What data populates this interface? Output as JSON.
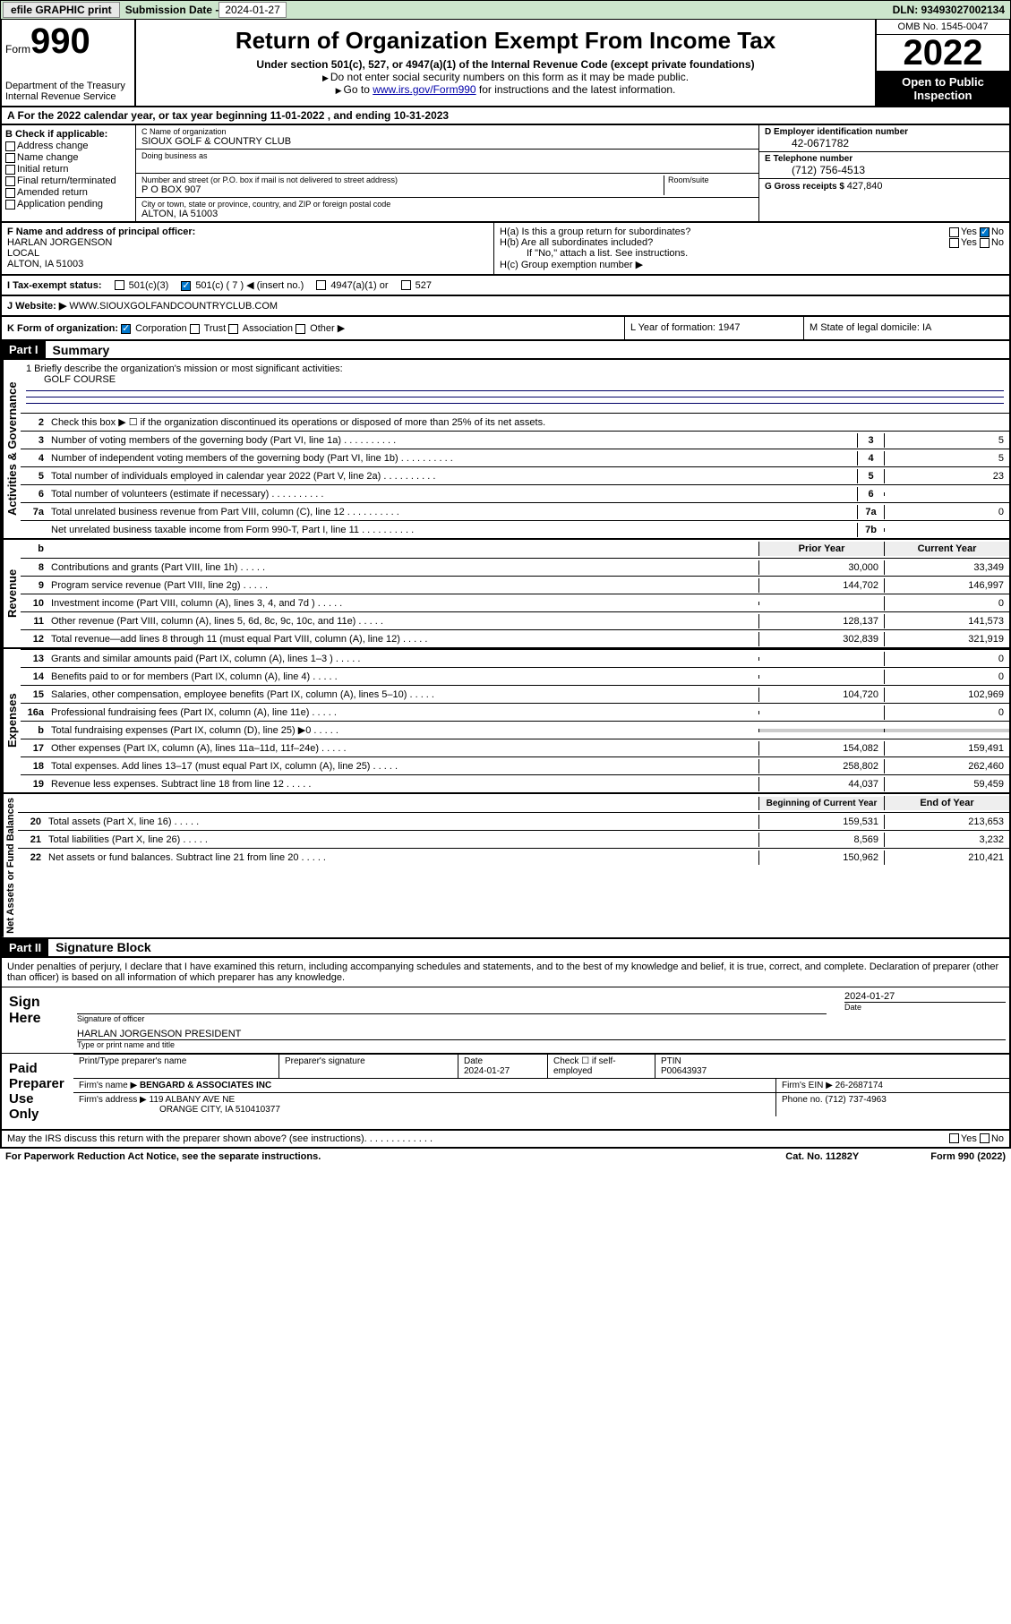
{
  "topbar": {
    "efile": "efile GRAPHIC print",
    "sub_label": "Submission Date - ",
    "sub_date": "2024-01-27",
    "dln": "DLN: 93493027002134"
  },
  "header": {
    "form_word": "Form",
    "form_num": "990",
    "dept1": "Department of the Treasury",
    "dept2": "Internal Revenue Service",
    "title": "Return of Organization Exempt From Income Tax",
    "subtitle": "Under section 501(c), 527, or 4947(a)(1) of the Internal Revenue Code (except private foundations)",
    "note1": "Do not enter social security numbers on this form as it may be made public.",
    "note2_pre": "Go to ",
    "note2_link": "www.irs.gov/Form990",
    "note2_post": " for instructions and the latest information.",
    "omb": "OMB No. 1545-0047",
    "year": "2022",
    "open": "Open to Public Inspection"
  },
  "row_a": "A For the 2022 calendar year, or tax year beginning 11-01-2022    , and ending 10-31-2023",
  "col_b": {
    "hdr": "B Check if applicable:",
    "items": [
      "Address change",
      "Name change",
      "Initial return",
      "Final return/terminated",
      "Amended return",
      "Application pending"
    ]
  },
  "col_c": {
    "name_label": "C Name of organization",
    "name": "SIOUX GOLF & COUNTRY CLUB",
    "dba_label": "Doing business as",
    "addr_label": "Number and street (or P.O. box if mail is not delivered to street address)",
    "room_label": "Room/suite",
    "addr": "P O BOX 907",
    "city_label": "City or town, state or province, country, and ZIP or foreign postal code",
    "city": "ALTON, IA  51003"
  },
  "col_d": {
    "ein_label": "D Employer identification number",
    "ein": "42-0671782",
    "tel_label": "E Telephone number",
    "tel": "(712) 756-4513",
    "gross_label": "G Gross receipts $ ",
    "gross": "427,840"
  },
  "fg": {
    "f_label": "F Name and address of principal officer:",
    "f_name": "HARLAN JORGENSON",
    "f_addr1": "LOCAL",
    "f_addr2": "ALTON, IA  51003",
    "ha": "H(a)  Is this a group return for subordinates?",
    "hb": "H(b)  Are all subordinates included?",
    "hb_note": "If \"No,\" attach a list. See instructions.",
    "hc": "H(c)  Group exemption number ▶",
    "yes": "Yes",
    "no": "No"
  },
  "row_i": {
    "label": "I    Tax-exempt status:",
    "o1": "501(c)(3)",
    "o2": "501(c) ( 7 ) ◀ (insert no.)",
    "o3": "4947(a)(1) or",
    "o4": "527"
  },
  "row_j": {
    "label": "J    Website: ▶",
    "val": " WWW.SIOUXGOLFANDCOUNTRYCLUB.COM"
  },
  "row_k": {
    "label": "K Form of organization:",
    "opts": [
      "Corporation",
      "Trust",
      "Association",
      "Other ▶"
    ],
    "l": "L Year of formation: 1947",
    "m": "M State of legal domicile: IA"
  },
  "part1": {
    "hdr": "Part I",
    "title": "Summary"
  },
  "mission": {
    "q": "1   Briefly describe the organization's mission or most significant activities:",
    "ans": "GOLF COURSE"
  },
  "gov_lines": [
    {
      "num": "2",
      "text": "Check this box ▶ ☐  if the organization discontinued its operations or disposed of more than 25% of its net assets."
    },
    {
      "num": "3",
      "text": "Number of voting members of the governing body (Part VI, line 1a)",
      "box": "3",
      "val": "5"
    },
    {
      "num": "4",
      "text": "Number of independent voting members of the governing body (Part VI, line 1b)",
      "box": "4",
      "val": "5"
    },
    {
      "num": "5",
      "text": "Total number of individuals employed in calendar year 2022 (Part V, line 2a)",
      "box": "5",
      "val": "23"
    },
    {
      "num": "6",
      "text": "Total number of volunteers (estimate if necessary)",
      "box": "6",
      "val": ""
    },
    {
      "num": "7a",
      "text": "Total unrelated business revenue from Part VIII, column (C), line 12",
      "box": "7a",
      "val": "0"
    },
    {
      "num": "",
      "text": "Net unrelated business taxable income from Form 990-T, Part I, line 11",
      "box": "7b",
      "val": ""
    }
  ],
  "vert_labels": {
    "gov": "Activities & Governance",
    "rev": "Revenue",
    "exp": "Expenses",
    "net": "Net Assets or Fund Balances"
  },
  "col_hdrs": {
    "b": "b",
    "prior": "Prior Year",
    "curr": "Current Year"
  },
  "rev_lines": [
    {
      "num": "8",
      "text": "Contributions and grants (Part VIII, line 1h)",
      "p": "30,000",
      "c": "33,349"
    },
    {
      "num": "9",
      "text": "Program service revenue (Part VIII, line 2g)",
      "p": "144,702",
      "c": "146,997"
    },
    {
      "num": "10",
      "text": "Investment income (Part VIII, column (A), lines 3, 4, and 7d )",
      "p": "",
      "c": "0"
    },
    {
      "num": "11",
      "text": "Other revenue (Part VIII, column (A), lines 5, 6d, 8c, 9c, 10c, and 11e)",
      "p": "128,137",
      "c": "141,573"
    },
    {
      "num": "12",
      "text": "Total revenue—add lines 8 through 11 (must equal Part VIII, column (A), line 12)",
      "p": "302,839",
      "c": "321,919"
    }
  ],
  "exp_lines": [
    {
      "num": "13",
      "text": "Grants and similar amounts paid (Part IX, column (A), lines 1–3 )",
      "p": "",
      "c": "0"
    },
    {
      "num": "14",
      "text": "Benefits paid to or for members (Part IX, column (A), line 4)",
      "p": "",
      "c": "0"
    },
    {
      "num": "15",
      "text": "Salaries, other compensation, employee benefits (Part IX, column (A), lines 5–10)",
      "p": "104,720",
      "c": "102,969"
    },
    {
      "num": "16a",
      "text": "Professional fundraising fees (Part IX, column (A), line 11e)",
      "p": "",
      "c": "0"
    },
    {
      "num": "b",
      "text": "Total fundraising expenses (Part IX, column (D), line 25) ▶0",
      "p": "shade",
      "c": "shade"
    },
    {
      "num": "17",
      "text": "Other expenses (Part IX, column (A), lines 11a–11d, 11f–24e)",
      "p": "154,082",
      "c": "159,491"
    },
    {
      "num": "18",
      "text": "Total expenses. Add lines 13–17 (must equal Part IX, column (A), line 25)",
      "p": "258,802",
      "c": "262,460"
    },
    {
      "num": "19",
      "text": "Revenue less expenses. Subtract line 18 from line 12",
      "p": "44,037",
      "c": "59,459"
    }
  ],
  "net_hdrs": {
    "beg": "Beginning of Current Year",
    "end": "End of Year"
  },
  "net_lines": [
    {
      "num": "20",
      "text": "Total assets (Part X, line 16)",
      "p": "159,531",
      "c": "213,653"
    },
    {
      "num": "21",
      "text": "Total liabilities (Part X, line 26)",
      "p": "8,569",
      "c": "3,232"
    },
    {
      "num": "22",
      "text": "Net assets or fund balances. Subtract line 21 from line 20",
      "p": "150,962",
      "c": "210,421"
    }
  ],
  "part2": {
    "hdr": "Part II",
    "title": "Signature Block"
  },
  "sig": {
    "decl": "Under penalties of perjury, I declare that I have examined this return, including accompanying schedules and statements, and to the best of my knowledge and belief, it is true, correct, and complete. Declaration of preparer (other than officer) is based on all information of which preparer has any knowledge.",
    "sign_here": "Sign Here",
    "sig_officer": "Signature of officer",
    "date_label": "Date",
    "date": "2024-01-27",
    "name_title": "HARLAN JORGENSON  PRESIDENT",
    "type_label": "Type or print name and title"
  },
  "prep": {
    "label": "Paid Preparer Use Only",
    "h1": "Print/Type preparer's name",
    "h2": "Preparer's signature",
    "h3": "Date",
    "h3v": "2024-01-27",
    "h4": "Check ☐ if self-employed",
    "h5": "PTIN",
    "h5v": "P00643937",
    "firm_name_l": "Firm's name     ▶",
    "firm_name": "BENGARD & ASSOCIATES INC",
    "firm_ein_l": "Firm's EIN ▶",
    "firm_ein": "26-2687174",
    "firm_addr_l": "Firm's address ▶",
    "firm_addr1": "119 ALBANY AVE NE",
    "firm_addr2": "ORANGE CITY, IA  510410377",
    "phone_l": "Phone no.",
    "phone": "(712) 737-4963"
  },
  "footer": {
    "may": "May the IRS discuss this return with the preparer shown above? (see instructions)",
    "yes": "Yes",
    "no": "No",
    "pra": "For Paperwork Reduction Act Notice, see the separate instructions.",
    "cat": "Cat. No. 11282Y",
    "form": "Form 990 (2022)"
  },
  "colors": {
    "topbar_bg": "#cce5cc",
    "link": "#0000aa",
    "black": "#000000",
    "check_blue": "#0077cc"
  }
}
